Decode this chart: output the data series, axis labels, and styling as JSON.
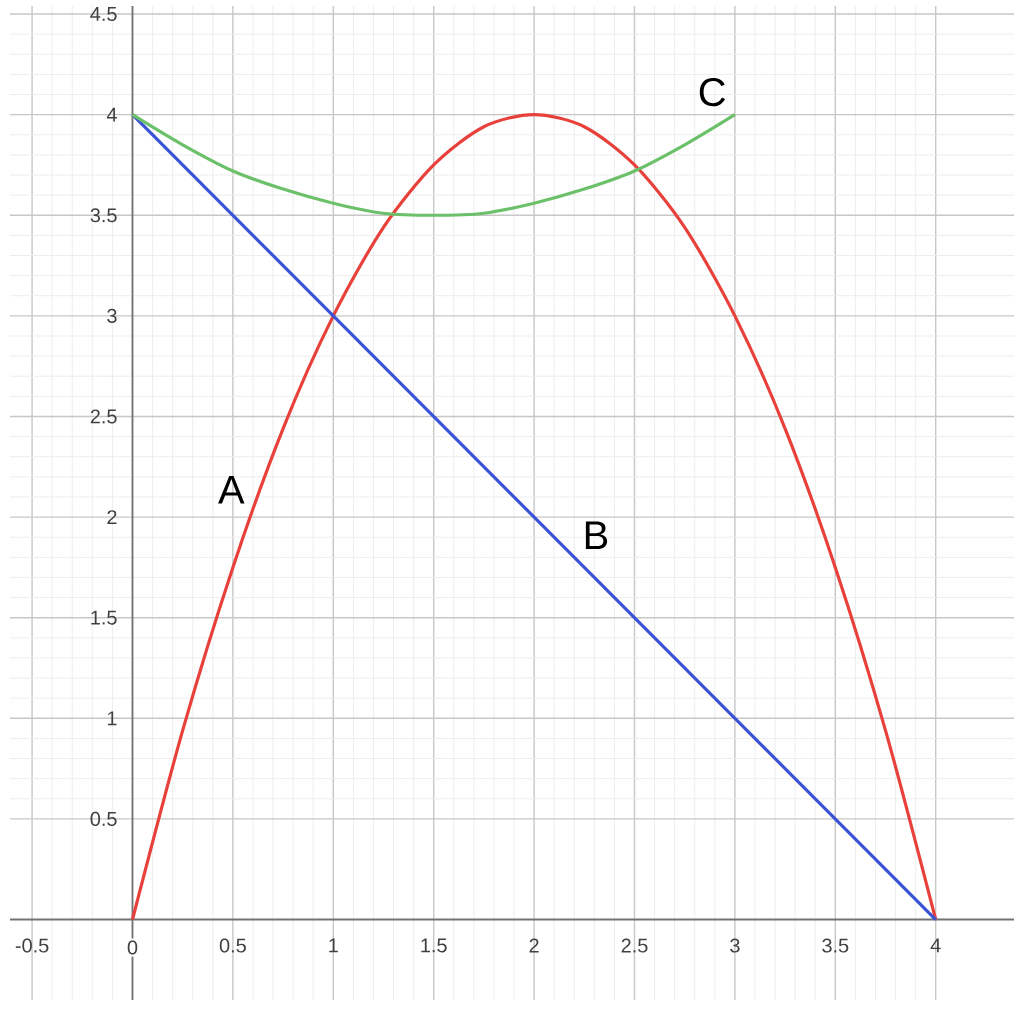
{
  "chart_data": {
    "type": "line",
    "xlim": [
      -0.61,
      4.39
    ],
    "ylim": [
      -0.4,
      4.54
    ],
    "xticks": [
      -0.5,
      0,
      0.5,
      1,
      1.5,
      2,
      2.5,
      3,
      3.5,
      4
    ],
    "yticks": [
      0.5,
      1,
      1.5,
      2,
      2.5,
      3,
      3.5,
      4,
      4.5
    ],
    "grid": true,
    "series": [
      {
        "name": "A",
        "color": "#e8403a",
        "x": [
          0,
          0.25,
          0.5,
          0.75,
          1,
          1.25,
          1.5,
          1.75,
          2,
          2.25,
          2.5,
          2.75,
          3,
          3.25,
          3.5,
          3.75,
          4
        ],
        "values": [
          0,
          0.94,
          1.75,
          2.44,
          3,
          3.44,
          3.75,
          3.94,
          4,
          3.94,
          3.75,
          3.44,
          3,
          2.44,
          1.75,
          0.94,
          0
        ]
      },
      {
        "name": "B",
        "color": "#3a53d6",
        "x": [
          0,
          4
        ],
        "values": [
          4,
          0
        ]
      },
      {
        "name": "C",
        "color": "#6cc06a",
        "x": [
          0,
          0.25,
          0.5,
          0.75,
          1,
          1.25,
          1.5,
          1.75,
          2,
          2.25,
          2.5,
          2.75,
          3
        ],
        "values": [
          4,
          3.85,
          3.72,
          3.63,
          3.56,
          3.51,
          3.5,
          3.51,
          3.56,
          3.63,
          3.72,
          3.85,
          4
        ]
      }
    ]
  }
}
